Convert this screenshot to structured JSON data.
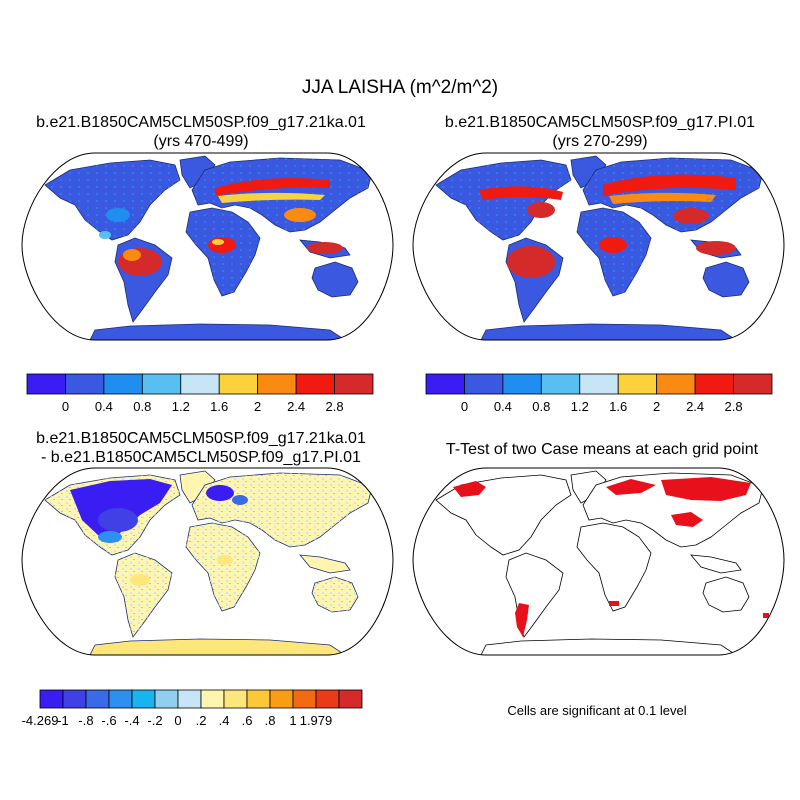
{
  "figure": {
    "title": "JJA LAISHA (m^2/m^2)"
  },
  "panels": {
    "top_left": {
      "title_line1": "b.e21.B1850CAM5CLM50SP.f09_g17.21ka.01",
      "title_line2": "(yrs 470-499)"
    },
    "top_right": {
      "title_line1": "b.e21.B1850CAM5CLM50SP.f09_g17.PI.01",
      "title_line2": "(yrs 270-299)"
    },
    "bottom_left": {
      "title_line1": "b.e21.B1850CAM5CLM50SP.f09_g17.21ka.01",
      "title_line2": "- b.e21.B1850CAM5CLM50SP.f09_g17.PI.01"
    },
    "bottom_right": {
      "title_line1": "T-Test of two Case means at each grid point",
      "note": "Cells are significant at 0.1 level",
      "significant_color": "#e8101a"
    }
  },
  "colorbars": {
    "field": {
      "colors": [
        "#3a1df2",
        "#3a58e0",
        "#1f8ef0",
        "#58c0f0",
        "#c6e6f6",
        "#fbd23c",
        "#fb8a12",
        "#f01a10",
        "#d42a2a"
      ],
      "labels": [
        "0",
        "0.4",
        "0.8",
        "1.2",
        "1.6",
        "2",
        "2.4",
        "2.8"
      ]
    },
    "difference": {
      "colors": [
        "#3a1df2",
        "#3f40e6",
        "#3a6ae6",
        "#2f8ff0",
        "#19b4f0",
        "#8fd0ee",
        "#c6e6f6",
        "#fdf5b0",
        "#fde77a",
        "#fdc837",
        "#fb9c15",
        "#f46a12",
        "#ea3a18",
        "#d42a2a"
      ],
      "labels": [
        "-4.269",
        "-1",
        "-.8",
        "-.6",
        "-.4",
        "-.2",
        "0",
        ".2",
        ".4",
        ".6",
        ".8",
        "1",
        "1.979"
      ]
    }
  }
}
